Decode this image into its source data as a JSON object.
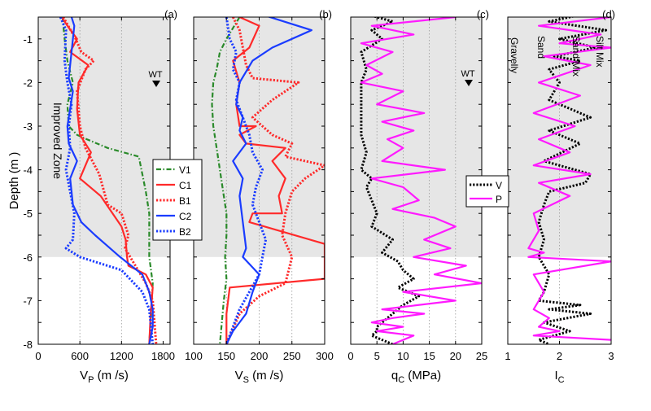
{
  "figure": {
    "ylabel": "Depth (m )",
    "ylim": [
      -8,
      -0.5
    ],
    "yticks": [
      "-0.5",
      "-1",
      "-1.5",
      "-2",
      "-2.5",
      "-3",
      "-3.5",
      "-4",
      "-4.5",
      "-5",
      "-5.5",
      "-6",
      "-6.5",
      "-7",
      "-7.5",
      "-8"
    ],
    "improved_zone_bottom": -6,
    "colors": {
      "improved_zone": "#e6e6e6",
      "grid": "#999999",
      "V1": "#2a8a2a",
      "C1": "#ff2a2a",
      "B1": "#ff2a2a",
      "C2": "#1a3cff",
      "B2": "#1a3cff",
      "V": "#000000",
      "P": "#ff1aff"
    }
  },
  "chart_data": [
    {
      "panel": "(a)",
      "type": "line",
      "xlabel": "V_P (m /s)",
      "xlim": [
        0,
        1900
      ],
      "xticks": [
        "0",
        "600",
        "1200",
        "1800"
      ],
      "annotations": [
        "Improved Zone",
        "WT"
      ],
      "legend": [
        "V1",
        "C1",
        "B1",
        "C2",
        "B2"
      ],
      "series": [
        {
          "name": "V1",
          "style": "dashdot",
          "x": [
            350,
            380,
            420,
            500,
            420,
            440,
            560,
            700,
            1000,
            1450,
            1550,
            1600,
            1600,
            1600,
            1650,
            1600
          ],
          "y": [
            -0.5,
            -1,
            -1.5,
            -2,
            -2.5,
            -3,
            -3.2,
            -3.3,
            -3.5,
            -3.7,
            -4.5,
            -5,
            -5.5,
            -6,
            -6.6,
            -8
          ]
        },
        {
          "name": "C1",
          "style": "solid",
          "x": [
            340,
            420,
            560,
            460,
            720,
            580,
            560,
            600,
            760,
            600,
            900,
            1200,
            1260,
            1280,
            1300,
            1550,
            1650,
            1620,
            1600
          ],
          "y": [
            -0.5,
            -0.7,
            -1,
            -1.3,
            -1.6,
            -2,
            -2.6,
            -3.2,
            -3.6,
            -4.2,
            -4.6,
            -5.3,
            -5.6,
            -6,
            -6.2,
            -6.4,
            -6.7,
            -7.3,
            -8
          ]
        },
        {
          "name": "B1",
          "style": "dotted",
          "x": [
            360,
            540,
            620,
            800,
            680,
            560,
            600,
            680,
            880,
            1000,
            1200,
            1300,
            1250,
            1400,
            1550,
            1650,
            1700
          ],
          "y": [
            -0.5,
            -1,
            -1.3,
            -1.5,
            -1.7,
            -2.2,
            -3,
            -3.5,
            -4.1,
            -4.8,
            -5,
            -5.5,
            -5.8,
            -6.2,
            -6.6,
            -7,
            -8
          ]
        },
        {
          "name": "C2",
          "style": "solid",
          "x": [
            460,
            520,
            480,
            440,
            500,
            460,
            420,
            440,
            560,
            460,
            500,
            620,
            820,
            1180,
            1500,
            1600,
            1650,
            1650,
            1600
          ],
          "y": [
            -0.4,
            -0.7,
            -1.3,
            -1.9,
            -2.2,
            -2.6,
            -3,
            -3.4,
            -3.8,
            -4.2,
            -4.8,
            -5.2,
            -5.5,
            -6,
            -6.4,
            -6.8,
            -7.2,
            -7.6,
            -8
          ]
        },
        {
          "name": "B2",
          "style": "dotted",
          "x": [
            320,
            400,
            380,
            420,
            480,
            440,
            460,
            400,
            460,
            520,
            500,
            400,
            600,
            1200,
            1500,
            1600,
            1650
          ],
          "y": [
            -0.5,
            -0.8,
            -1.5,
            -2,
            -2.5,
            -3,
            -3.5,
            -4,
            -4.5,
            -5,
            -5.6,
            -5.8,
            -6,
            -6.3,
            -6.8,
            -7.2,
            -8
          ]
        }
      ]
    },
    {
      "panel": "(b)",
      "type": "line",
      "xlabel": "V_S (m /s)",
      "xlim": [
        100,
        300
      ],
      "xticks": [
        "100",
        "150",
        "200",
        "250",
        "300"
      ],
      "series": [
        {
          "name": "V1",
          "style": "dashdot",
          "x": [
            170,
            150,
            140,
            135,
            130,
            128,
            130,
            135,
            140,
            145,
            150,
            150,
            148,
            150,
            146,
            140
          ],
          "y": [
            -0.5,
            -1,
            -1.3,
            -1.7,
            -2,
            -2.5,
            -3,
            -3.5,
            -4,
            -4.5,
            -5,
            -5.5,
            -6,
            -6.5,
            -7,
            -8
          ]
        },
        {
          "name": "C1",
          "style": "solid",
          "x": [
            155,
            200,
            185,
            160,
            170,
            165,
            170,
            195,
            170,
            180,
            240,
            220,
            240,
            230,
            235,
            190,
            185,
            300,
            300,
            155,
            150,
            150
          ],
          "y": [
            -0.4,
            -0.7,
            -1.2,
            -1.5,
            -2,
            -2.5,
            -3,
            -3,
            -3.2,
            -3.4,
            -3.5,
            -3.8,
            -4.2,
            -4.6,
            -5,
            -5,
            -5.2,
            -5.7,
            -6.5,
            -6.7,
            -7.3,
            -8
          ]
        },
        {
          "name": "B1",
          "style": "dotted",
          "x": [
            160,
            170,
            175,
            180,
            190,
            260,
            220,
            190,
            220,
            250,
            240,
            300,
            270,
            250,
            240,
            235,
            250,
            240,
            200,
            170,
            150
          ],
          "y": [
            -0.5,
            -0.8,
            -1.2,
            -1.6,
            -1.9,
            -2,
            -2.4,
            -2.8,
            -3.2,
            -3.4,
            -3.7,
            -3.9,
            -4.2,
            -4.5,
            -5,
            -5.5,
            -6,
            -6.6,
            -6.9,
            -7.3,
            -8
          ]
        },
        {
          "name": "C2",
          "style": "solid",
          "x": [
            195,
            280,
            220,
            190,
            170,
            165,
            175,
            170,
            180,
            160,
            175,
            170,
            175,
            180,
            175,
            200,
            190,
            180,
            160,
            150
          ],
          "y": [
            -0.4,
            -0.8,
            -1.2,
            -1.5,
            -2,
            -2.5,
            -2.8,
            -3.1,
            -3.4,
            -3.8,
            -4.2,
            -4.6,
            -5.2,
            -5.8,
            -6,
            -6.4,
            -6.8,
            -7.3,
            -7.7,
            -8
          ]
        },
        {
          "name": "B2",
          "style": "dotted",
          "x": [
            150,
            155,
            165,
            160,
            170,
            165,
            175,
            185,
            190,
            205,
            195,
            190,
            200,
            210,
            205,
            200,
            185,
            170,
            160,
            150
          ],
          "y": [
            -0.5,
            -1,
            -1.3,
            -1.7,
            -2,
            -2.4,
            -2.8,
            -3.2,
            -3.6,
            -4,
            -4.4,
            -4.8,
            -5.2,
            -5.6,
            -6,
            -6.4,
            -6.8,
            -7.2,
            -7.6,
            -8
          ]
        }
      ]
    },
    {
      "panel": "(c)",
      "type": "line",
      "xlabel": "q_C (MPa)",
      "xlim": [
        0,
        25
      ],
      "xticks": [
        "0",
        "5",
        "10",
        "15",
        "20",
        "25"
      ],
      "annotations": [
        "WT"
      ],
      "legend": [
        "V",
        "P"
      ],
      "series": [
        {
          "name": "V",
          "style": "dotted",
          "x": [
            2,
            8,
            4,
            6,
            2,
            3,
            2,
            2,
            2,
            2,
            3,
            2,
            4,
            3,
            4,
            5,
            4,
            8,
            6,
            9,
            10,
            12,
            9,
            13,
            10,
            8,
            6,
            5,
            5,
            4,
            6,
            8
          ],
          "y": [
            -0.4,
            -0.6,
            -0.8,
            -1,
            -1.3,
            -1.7,
            -2,
            -2.4,
            -2.8,
            -3.2,
            -3.6,
            -4,
            -4.2,
            -4.4,
            -4.7,
            -5,
            -5.3,
            -5.6,
            -5.9,
            -6.1,
            -6.3,
            -6.5,
            -6.7,
            -6.9,
            -7.1,
            -7.3,
            -7.5,
            -7.6,
            -7.7,
            -7.8,
            -7.9,
            -8
          ]
        },
        {
          "name": "P",
          "style": "solid",
          "x": [
            2,
            20,
            4,
            12,
            2,
            8,
            3,
            6,
            2,
            10,
            5,
            14,
            6,
            12,
            7,
            10,
            6,
            18,
            4,
            10,
            13,
            8,
            16,
            20,
            14,
            19,
            12,
            22,
            16,
            25,
            10,
            20,
            6,
            14,
            8,
            4,
            10,
            5,
            12,
            8
          ],
          "y": [
            -0.4,
            -0.5,
            -0.7,
            -0.9,
            -1.1,
            -1.3,
            -1.6,
            -1.8,
            -2,
            -2.2,
            -2.5,
            -2.7,
            -2.9,
            -3.1,
            -3.3,
            -3.5,
            -3.8,
            -4,
            -4.2,
            -4.4,
            -4.7,
            -4.9,
            -5.1,
            -5.3,
            -5.6,
            -5.8,
            -6,
            -6.2,
            -6.4,
            -6.6,
            -6.8,
            -7,
            -7.2,
            -7.3,
            -7.4,
            -7.5,
            -7.6,
            -7.7,
            -7.8,
            -8
          ]
        }
      ]
    },
    {
      "panel": "(d)",
      "type": "line",
      "xlabel": "I_C",
      "xlim": [
        1,
        3
      ],
      "xticks": [
        "1",
        "2",
        "3"
      ],
      "annotations": [
        "Gravelly",
        "Sand",
        "Sand Mix",
        "Silt Mix"
      ],
      "series": [
        {
          "name": "V",
          "style": "dotted",
          "x": [
            2.6,
            1.8,
            2.9,
            2,
            2.7,
            1.9,
            2.4,
            1.8,
            2,
            1.8,
            2.6,
            1.8,
            2.4,
            1.7,
            2.6,
            2.5,
            1.8,
            1.7,
            1.6,
            1.7,
            1.6,
            1.8,
            1.7,
            1.6,
            2.4,
            1.8,
            2.6,
            1.7,
            2.2,
            1.6,
            1.8
          ],
          "y": [
            -0.4,
            -0.6,
            -0.8,
            -1,
            -1.2,
            -1.4,
            -1.5,
            -1.7,
            -2,
            -2.4,
            -2.8,
            -3.1,
            -3.4,
            -3.8,
            -4.1,
            -4.3,
            -4.5,
            -4.8,
            -5.2,
            -5.6,
            -6,
            -6.4,
            -6.8,
            -7,
            -7.1,
            -7.2,
            -7.3,
            -7.5,
            -7.7,
            -7.9,
            -8
          ]
        },
        {
          "name": "P",
          "style": "solid",
          "x": [
            2.2,
            3,
            1.6,
            2.8,
            2,
            3,
            1.7,
            2.6,
            1.6,
            2.4,
            1.5,
            2.3,
            1.6,
            2.2,
            1.5,
            2.6,
            1.6,
            2.2,
            1.5,
            1.6,
            1.4,
            1.7,
            1.4,
            3,
            1.5,
            1.7,
            1.5,
            1.8,
            1.6,
            2,
            1.5,
            3
          ],
          "y": [
            -0.4,
            -0.5,
            -0.7,
            -0.9,
            -1.1,
            -1.2,
            -1.4,
            -1.6,
            -2,
            -2.3,
            -2.7,
            -3,
            -3.3,
            -3.6,
            -3.9,
            -4.1,
            -4.3,
            -4.6,
            -5,
            -5.4,
            -5.8,
            -5.9,
            -6,
            -6.1,
            -6.4,
            -6.8,
            -7.2,
            -7.4,
            -7.6,
            -7.7,
            -7.8,
            -7.9
          ]
        }
      ]
    }
  ]
}
